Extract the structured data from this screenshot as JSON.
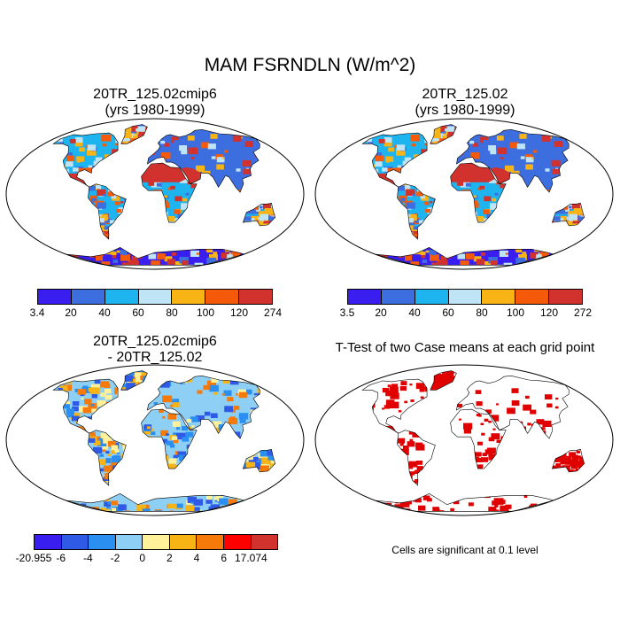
{
  "title": "MAM FSRNDLN (W/m^2)",
  "panels": [
    {
      "title1": "20TR_125.02cmip6",
      "title2": "(yrs 1980-1999)",
      "kind": "mean"
    },
    {
      "title1": "20TR_125.02",
      "title2": "(yrs 1980-1999)",
      "kind": "mean"
    },
    {
      "title1": "20TR_125.02cmip6",
      "title2": "- 20TR_125.02",
      "kind": "diff"
    },
    {
      "title1": "T-Test of two Case means at each grid point",
      "title2": "",
      "kind": "ttest"
    }
  ],
  "colorbars": [
    {
      "colors": [
        "#3a1ef0",
        "#3d6ee0",
        "#1eb4f0",
        "#bfe4f5",
        "#f8b414",
        "#f55a0a",
        "#d2322d"
      ],
      "labels": [
        "3.4",
        "20",
        "40",
        "60",
        "80",
        "100",
        "120",
        "274"
      ]
    },
    {
      "colors": [
        "#3a1ef0",
        "#3d6ee0",
        "#1eb4f0",
        "#bfe4f5",
        "#f8b414",
        "#f55a0a",
        "#d2322d"
      ],
      "labels": [
        "3.5",
        "20",
        "40",
        "60",
        "80",
        "100",
        "120",
        "272"
      ]
    },
    {
      "colors": [
        "#3a1ef0",
        "#2e5ae6",
        "#2a8ff0",
        "#8dcff5",
        "#fff09a",
        "#f8b414",
        "#f57a0a",
        "#ff0000",
        "#d2322d"
      ],
      "labels": [
        "-20.955",
        "-6",
        "-4",
        "-2",
        "0",
        "2",
        "4",
        "6",
        "17.074"
      ]
    }
  ],
  "significance_note": "Cells are significant at 0.1 level",
  "colors": {
    "ocean": "#ffffff",
    "land_outline": "#000000",
    "significant": "#e00000"
  }
}
